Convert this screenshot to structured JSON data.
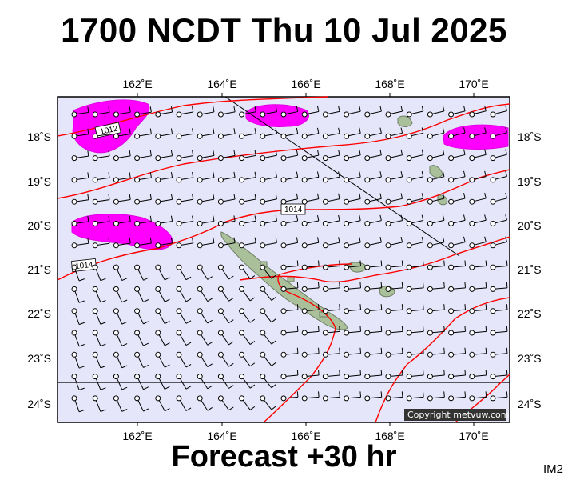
{
  "title": "1700 NCDT Thu 10 Jul 2025",
  "footer": "Forecast +30 hr",
  "corner_tag": "IM2",
  "copyright": "Copyright metvuw.com",
  "map": {
    "lon_labels": [
      "162˚E",
      "164˚E",
      "166˚E",
      "168˚E",
      "170˚E"
    ],
    "lat_labels": [
      "18˚S",
      "19˚S",
      "20˚S",
      "21˚S",
      "22˚S",
      "23˚S",
      "24˚S"
    ],
    "isobar_labels": [
      "1012",
      "1014",
      "1014"
    ],
    "colors": {
      "ocean": "#e6e6fa",
      "isobar": "#ff0000",
      "rain": "#ff00ff",
      "land": "#a9c09b",
      "wind": "#000000"
    }
  }
}
